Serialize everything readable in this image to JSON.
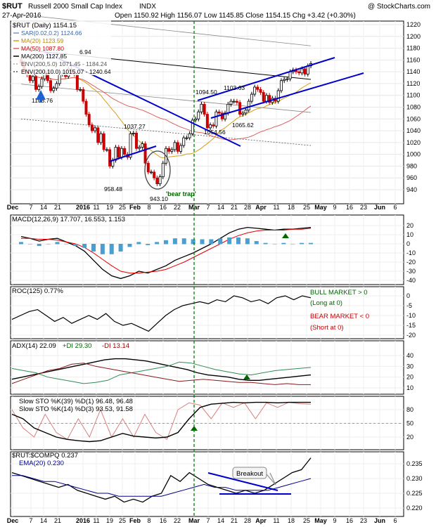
{
  "header": {
    "symbol": "$RUT",
    "name": "Russell 2000 Small Cap Index",
    "exchange": "INDX",
    "watermark": "@ StockCharts.com",
    "date": "27-Apr-2016",
    "ohlc_text": "Open 1150.92  High 1156.07  Low 1145.85  Close 1154.15  Chg +3.42 (+0.30%)",
    "chg_color": "#008000"
  },
  "legend": {
    "title": "$RUT (Daily) 1154.15",
    "sar": "SAR(0.02,0.2) 1124.66",
    "ma20": "MA(20) 1123.59",
    "ma50": "MA(50) 1087.80",
    "ma200": "MA(200) 1127.85",
    "env_a": "ENV(200,5.0) 1071.45 - 1184.24",
    "env_b": "ENV(200,10.0) 1015.07 - 1240.64",
    "ma200_label_tail": "6.94"
  },
  "colors": {
    "up_candle": "#000000",
    "down_candle": "#cc0000",
    "trendline": "#0000cc",
    "ma20": "#d4a017",
    "ma50": "#e06060",
    "ma200": "#000000",
    "env": "#888888",
    "macd_line": "#000000",
    "macd_signal": "#e00000",
    "macd_hist": "#4a9fcf",
    "green_arrow": "#006600",
    "bull_text": "#006600",
    "bear_text": "#cc0000",
    "vline": "#008000"
  },
  "annotations": {
    "p1108": "1108.76",
    "p1037": "1037.27",
    "p958": "958.48",
    "p943": "943.10",
    "p1094": "1094.50",
    "p1054": "1054.56",
    "p1103": "1103.63",
    "p1065": "1065.62",
    "bear_trap": "'bear trap'",
    "breakout": "Breakout"
  },
  "panels": {
    "macd": {
      "label": "MACD(12,26,9) 17.707, 16.553, 1.153",
      "ticks": [
        "20",
        "10",
        "0",
        "-10",
        "-20",
        "-30",
        "-40"
      ]
    },
    "roc": {
      "label": "ROC(125) 0.77%",
      "ticks": [
        "0",
        "-5",
        "-10",
        "-15",
        "-20"
      ],
      "bull": "BULL MARKET > 0",
      "bull2": "(Long at 0)",
      "bear": "BEAR MARKET < 0",
      "bear2": "(Short at 0)"
    },
    "adx": {
      "label": "ADX(14) 22.09",
      "plus_di": "+DI 29.30",
      "minus_di": "-DI 13.14",
      "ticks": [
        "40",
        "30",
        "20",
        "10"
      ]
    },
    "sto": {
      "label1": "Slow STO %K(39) %D(1) 96.48, 96.48",
      "label2": "Slow STO %K(14) %D(3) 93.53, 91.58",
      "ticks": [
        "80",
        "50",
        "20"
      ]
    },
    "rs": {
      "label": "$RUT:$COMPQ 0.237",
      "ema": "EMA(20) 0.230",
      "ticks": [
        "0.235",
        "0.230",
        "0.225",
        "0.220"
      ]
    }
  },
  "price_axis": [
    "1220",
    "1200",
    "1180",
    "1160",
    "1140",
    "1120",
    "1100",
    "1080",
    "1060",
    "1040",
    "1020",
    "1000",
    "980",
    "960",
    "940"
  ],
  "x_axis": [
    "Dec",
    "7",
    "14",
    "21",
    "2016",
    "11",
    "19",
    "25",
    "Feb",
    "8",
    "16",
    "22",
    "Mar",
    "7",
    "14",
    "21",
    "28",
    "Apr",
    "11",
    "18",
    "25",
    "May",
    "9",
    "16",
    "23",
    "Jun",
    "6"
  ],
  "x_axis_bold": [
    "Dec",
    "2016",
    "Feb",
    "Mar",
    "Apr",
    "May",
    "Jun"
  ],
  "chart_data": {
    "type": "candlestick",
    "title": "$RUT Russell 2000 Small Cap Index (Daily)",
    "ylim": [
      930,
      1225
    ],
    "series": [
      {
        "name": "$RUT",
        "x": [
          "Dec 4",
          "Dec 7",
          "Dec 8",
          "Dec 9",
          "Dec 10",
          "Dec 11",
          "Dec 14",
          "Dec 15",
          "Dec 16",
          "Dec 17",
          "Dec 18",
          "Dec 21",
          "Dec 22",
          "Dec 23",
          "Dec 24",
          "Dec 28",
          "Dec 29",
          "Dec 30",
          "Dec 31",
          "Jan 4",
          "Jan 5",
          "Jan 6",
          "Jan 7",
          "Jan 8",
          "Jan 11",
          "Jan 12",
          "Jan 13",
          "Jan 14",
          "Jan 15",
          "Jan 19",
          "Jan 20",
          "Jan 21",
          "Jan 22",
          "Jan 25",
          "Jan 26",
          "Jan 27",
          "Jan 28",
          "Jan 29",
          "Feb 1",
          "Feb 2",
          "Feb 3",
          "Feb 4",
          "Feb 5",
          "Feb 8",
          "Feb 9",
          "Feb 10",
          "Feb 11",
          "Feb 12",
          "Feb 16",
          "Feb 17",
          "Feb 18",
          "Feb 19",
          "Feb 22",
          "Feb 23",
          "Feb 24",
          "Feb 25",
          "Feb 26",
          "Feb 29",
          "Mar 1",
          "Mar 2",
          "Mar 3",
          "Mar 4",
          "Mar 7",
          "Mar 8",
          "Mar 9",
          "Mar 10",
          "Mar 11",
          "Mar 14",
          "Mar 15",
          "Mar 16",
          "Mar 17",
          "Mar 18",
          "Mar 21",
          "Mar 22",
          "Mar 23",
          "Mar 24",
          "Mar 28",
          "Mar 29",
          "Mar 30",
          "Mar 31",
          "Apr 1",
          "Apr 4",
          "Apr 5",
          "Apr 6",
          "Apr 7",
          "Apr 8",
          "Apr 11",
          "Apr 12",
          "Apr 13",
          "Apr 14",
          "Apr 15",
          "Apr 18",
          "Apr 19",
          "Apr 20",
          "Apr 21",
          "Apr 22",
          "Apr 25",
          "Apr 26",
          "Apr 27"
        ],
        "close": [
          1155,
          1140,
          1135,
          1125,
          1132,
          1110,
          1115,
          1128,
          1140,
          1125,
          1108,
          1112,
          1120,
          1136,
          1138,
          1132,
          1145,
          1140,
          1136,
          1110,
          1110,
          1090,
          1068,
          1050,
          1040,
          1045,
          1020,
          1035,
          1008,
          1008,
          980,
          990,
          1012,
          995,
          1010,
          1000,
          995,
          1035,
          1036,
          1010,
          1012,
          1018,
          985,
          970,
          970,
          960,
          950,
          962,
          985,
          1010,
          1005,
          1008,
          1020,
          1005,
          1015,
          1028,
          1028,
          1035,
          1058,
          1060,
          1072,
          1085,
          1068,
          1045,
          1050,
          1048,
          1072,
          1070,
          1060,
          1070,
          1085,
          1090,
          1090,
          1088,
          1068,
          1070,
          1075,
          1090,
          1102,
          1114,
          1110,
          1105,
          1090,
          1100,
          1088,
          1095,
          1090,
          1108,
          1125,
          1127,
          1128,
          1140,
          1143,
          1140,
          1138,
          1145,
          1136,
          1150,
          1154
        ]
      }
    ]
  }
}
